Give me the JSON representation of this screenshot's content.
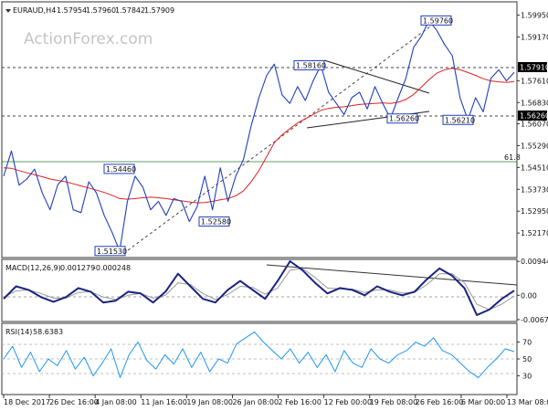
{
  "watermark": "ActionForex.com",
  "panels": {
    "price": {
      "title": "EURAUD,H4",
      "ohlc": [
        "1.57954",
        "1.57960",
        "1.57842",
        "1.57909"
      ]
    },
    "macd": {
      "title": "MACD(12,26,9)",
      "values": [
        "0.001279",
        "-0.000248"
      ]
    },
    "rsi": {
      "title": "RSI(14)",
      "value": "58.6383"
    }
  },
  "chart_data": [
    {
      "type": "line",
      "panel": "price",
      "x_tick_labels": [
        "18 Dec 2017",
        "26 Dec 16:00",
        "4 Jan 08:00",
        "11 Jan 16:00",
        "19 Jan 08:00",
        "26 Jan 08:00",
        "2 Feb 16:00",
        "12 Feb 00:00",
        "19 Feb 08:00",
        "26 Feb 16:00",
        "6 Mar 00:00",
        "13 Mar 08:00"
      ],
      "y_tick_labels": [
        "1.59950",
        "1.59170",
        "1.57610",
        "1.56830",
        "1.56070",
        "1.55290",
        "1.54510",
        "1.53730",
        "1.52950",
        "1.52170"
      ],
      "ylim": [
        1.5136,
        1.6036
      ],
      "current_price_label": "1.57910",
      "support_price_label": "1.56260",
      "fib_level_label": "61.8",
      "annotations": [
        {
          "label": "1.59760",
          "value": 1.5976
        },
        {
          "label": "1.58160",
          "value": 1.5816
        },
        {
          "label": "1.54460",
          "value": 1.5446
        },
        {
          "label": "1.52580",
          "value": 1.5258
        },
        {
          "label": "1.51530",
          "value": 1.5153
        },
        {
          "label": "1.56260",
          "value": 1.5626
        },
        {
          "label": "1.56210",
          "value": 1.5621
        }
      ],
      "series": [
        {
          "name": "EURAUD,H4",
          "color": "#1f3fbf",
          "values": [
            1.542,
            1.551,
            1.5388,
            1.541,
            1.5445,
            1.536,
            1.53,
            1.539,
            1.542,
            1.53,
            1.529,
            1.54,
            1.536,
            1.528,
            1.522,
            1.5153,
            1.533,
            1.542,
            1.538,
            1.53,
            1.533,
            1.528,
            1.534,
            1.533,
            1.5258,
            1.531,
            1.542,
            1.53,
            1.545,
            1.533,
            1.542,
            1.548,
            1.56,
            1.57,
            1.578,
            1.582,
            1.571,
            1.568,
            1.574,
            1.569,
            1.576,
            1.5816,
            1.572,
            1.568,
            1.564,
            1.57,
            1.572,
            1.566,
            1.574,
            1.568,
            1.5626,
            1.57,
            1.577,
            1.588,
            1.592,
            1.5976,
            1.594,
            1.589,
            1.585,
            1.57,
            1.5621,
            1.57,
            1.565,
            1.577,
            1.58,
            1.576,
            1.5791
          ]
        },
        {
          "name": "MA",
          "color": "#e02020",
          "values": [
            1.545,
            1.5448,
            1.544,
            1.5432,
            1.5425,
            1.5418,
            1.541,
            1.5405,
            1.54,
            1.5393,
            1.5385,
            1.5378,
            1.537,
            1.5362,
            1.5352,
            1.534,
            1.5338,
            1.534,
            1.5343,
            1.5345,
            1.5343,
            1.534,
            1.5336,
            1.5332,
            1.5328,
            1.5325,
            1.5326,
            1.533,
            1.5336,
            1.534,
            1.535,
            1.5368,
            1.54,
            1.544,
            1.549,
            1.554,
            1.5568,
            1.559,
            1.561,
            1.5625,
            1.564,
            1.5655,
            1.5662,
            1.5666,
            1.5668,
            1.5672,
            1.5676,
            1.5678,
            1.568,
            1.5682,
            1.568,
            1.5684,
            1.5694,
            1.5712,
            1.5738,
            1.5765,
            1.5788,
            1.58,
            1.5805,
            1.58,
            1.579,
            1.578,
            1.5768,
            1.576,
            1.5757,
            1.5755,
            1.5758
          ]
        }
      ]
    },
    {
      "type": "line",
      "panel": "macd",
      "y_tick_labels": [
        "0.009447",
        "0.00",
        "-0.006778"
      ],
      "ylim": [
        -0.0068,
        0.0095
      ],
      "series": [
        {
          "name": "MACD",
          "color": "#1a237e",
          "values": [
            -0.001,
            0.0025,
            0.0015,
            -0.0005,
            -0.0018,
            -0.0005,
            0.002,
            0.001,
            -0.002,
            -0.0015,
            0.001,
            0.0005,
            -0.002,
            0.001,
            0.006,
            0.0025,
            -0.001,
            -0.002,
            0.0015,
            0.004,
            0.0015,
            -0.001,
            0.004,
            0.0095,
            0.007,
            0.0035,
            0.0005,
            0.002,
            0.0015,
            0.0,
            0.0025,
            0.001,
            0.0,
            0.001,
            0.0045,
            0.0075,
            0.0055,
            0.002,
            -0.0055,
            -0.004,
            -0.001,
            0.0013
          ]
        },
        {
          "name": "Signal",
          "color": "#999999",
          "values": [
            -0.0005,
            0.0012,
            0.0015,
            0.0005,
            -0.0008,
            -0.0008,
            0.0008,
            0.001,
            -0.0005,
            -0.0012,
            0.0,
            0.0005,
            -0.0008,
            0.0,
            0.0035,
            0.003,
            0.0005,
            -0.0012,
            0.0002,
            0.0025,
            0.0022,
            0.0003,
            0.002,
            0.007,
            0.0075,
            0.005,
            0.002,
            0.0018,
            0.0017,
            0.0008,
            0.0015,
            0.0015,
            0.0006,
            0.0008,
            0.003,
            0.006,
            0.006,
            0.0035,
            -0.0025,
            -0.004,
            -0.0025,
            -0.0002
          ]
        }
      ]
    },
    {
      "type": "line",
      "panel": "rsi",
      "y_tick_labels": [
        "70",
        "50",
        "30"
      ],
      "ylim": [
        0,
        100
      ],
      "series": [
        {
          "name": "RSI",
          "color": "#2196f3",
          "values": [
            50,
            65,
            40,
            58,
            35,
            50,
            42,
            60,
            38,
            52,
            30,
            45,
            62,
            28,
            55,
            70,
            48,
            38,
            55,
            44,
            62,
            40,
            58,
            35,
            50,
            45,
            68,
            75,
            82,
            70,
            60,
            50,
            62,
            45,
            58,
            40,
            55,
            35,
            60,
            45,
            40,
            62,
            50,
            45,
            55,
            60,
            70,
            65,
            75,
            60,
            55,
            45,
            35,
            28,
            40,
            50,
            62,
            58.64
          ]
        }
      ]
    }
  ]
}
